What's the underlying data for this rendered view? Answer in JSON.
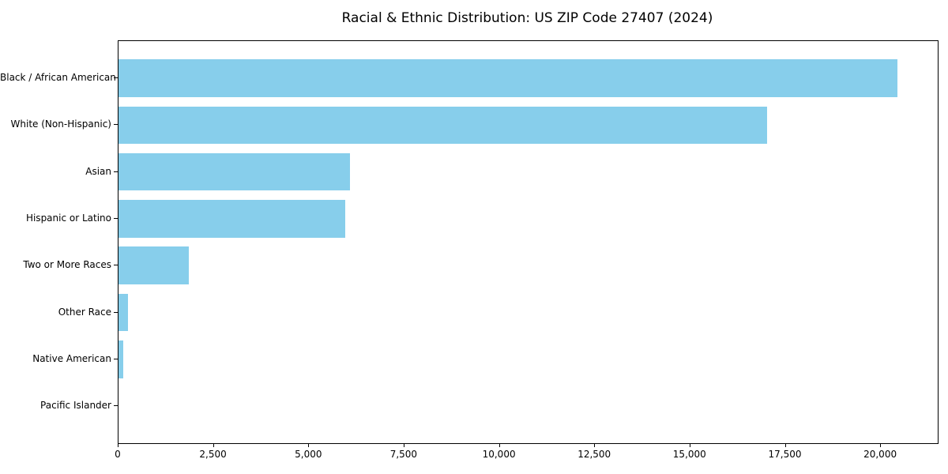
{
  "chart_data": {
    "type": "bar",
    "orientation": "horizontal",
    "title": "Racial & Ethnic Distribution: US ZIP Code 27407 (2024)",
    "categories": [
      "Black / African American",
      "White (Non-Hispanic)",
      "Asian",
      "Hispanic or Latino",
      "Two or More Races",
      "Other Race",
      "Native American",
      "Pacific Islander"
    ],
    "values": [
      20430,
      17020,
      6080,
      5950,
      1840,
      250,
      120,
      0
    ],
    "xlabel": "",
    "ylabel": "",
    "xlim": [
      0,
      21490
    ],
    "x_ticks": {
      "values": [
        0,
        2500,
        5000,
        7500,
        10000,
        12500,
        15000,
        17500,
        20000
      ],
      "labels": [
        "0",
        "2,500",
        "5,000",
        "7,500",
        "10,000",
        "12,500",
        "15,000",
        "17,500",
        "20,000"
      ]
    },
    "grid": false,
    "legend": "none",
    "bar_color": "#87CEEB",
    "text_color": "#000000",
    "spine_color": "#000000"
  }
}
